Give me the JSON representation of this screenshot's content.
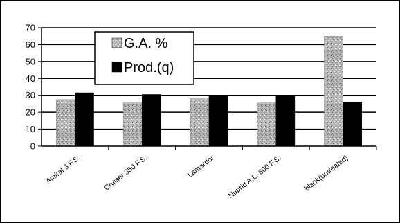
{
  "chart_data": {
    "type": "bar",
    "categories": [
      "Amiral 3 F.S.",
      "Cruiser 350 F.S.",
      "Lamardor",
      "Nuprid A.L. 600 F.S.",
      "blank(untreated)"
    ],
    "series": [
      {
        "name": "G.A. %",
        "values": [
          27.5,
          25.5,
          28,
          25.5,
          65
        ],
        "color": "#a8a8a8",
        "pattern": "speckled-gray"
      },
      {
        "name": "Prod.(q)",
        "values": [
          31.5,
          30.5,
          29.5,
          29.5,
          26
        ],
        "color": "#000000",
        "pattern": "solid"
      }
    ],
    "y_ticks": [
      "0",
      "10",
      "20",
      "30",
      "40",
      "50",
      "60",
      "70"
    ],
    "ylim": [
      0,
      70
    ],
    "grid": true,
    "legend_position": "top-left",
    "title": "",
    "xlabel": "",
    "ylabel": ""
  }
}
